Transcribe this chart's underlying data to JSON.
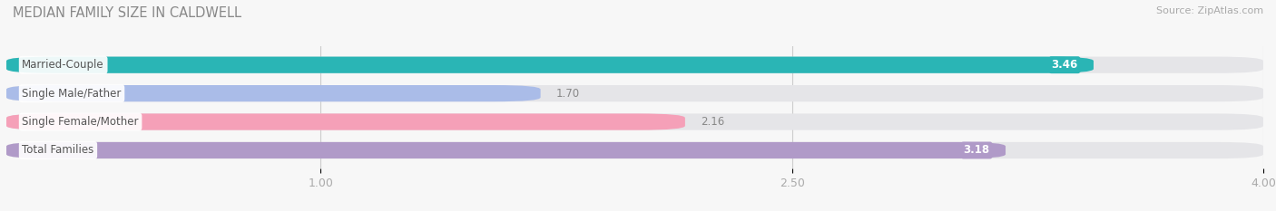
{
  "title": "MEDIAN FAMILY SIZE IN CALDWELL",
  "source": "Source: ZipAtlas.com",
  "categories": [
    "Married-Couple",
    "Single Male/Father",
    "Single Female/Mother",
    "Total Families"
  ],
  "values": [
    3.46,
    1.7,
    2.16,
    3.18
  ],
  "bar_colors": [
    "#2ab5b5",
    "#aabce8",
    "#f5a0b8",
    "#b09ac8"
  ],
  "value_inside": [
    true,
    false,
    false,
    true
  ],
  "bar_bg_color": "#e5e5e8",
  "fig_bg_color": "#f7f7f7",
  "xlim": [
    0,
    4.0
  ],
  "xticks": [
    1.0,
    2.5,
    4.0
  ],
  "bar_height": 0.58,
  "bar_gap": 0.42,
  "figsize": [
    14.06,
    2.33
  ],
  "dpi": 100,
  "title_fontsize": 10.5,
  "label_fontsize": 8.5,
  "value_fontsize": 8.5,
  "tick_fontsize": 9,
  "source_fontsize": 8,
  "title_color": "#888888",
  "tick_color": "#aaaaaa",
  "source_color": "#aaaaaa",
  "dark_value_color": "#888888",
  "white_value_color": "#ffffff"
}
